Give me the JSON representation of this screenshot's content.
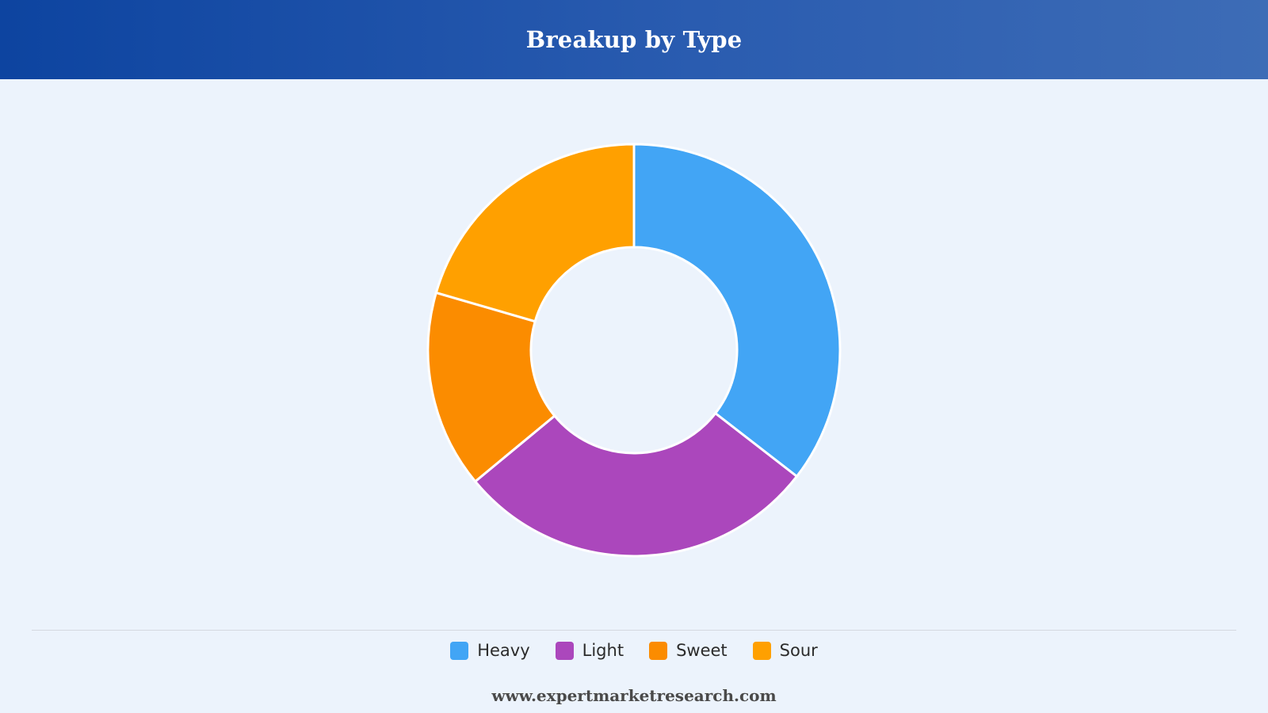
{
  "title": "Breakup by Type",
  "footer": "www.expertmarketresearch.com",
  "chart_data": {
    "type": "pie",
    "donut": true,
    "title": "Breakup by Type",
    "legend": "bottom",
    "categories": [
      "Heavy",
      "Light",
      "Sweet",
      "Sour"
    ],
    "values": [
      35.5,
      28.5,
      15.5,
      20.5
    ],
    "colors": [
      "#42a5f5",
      "#ab47bc",
      "#fb8c00",
      "#ffa000"
    ]
  }
}
